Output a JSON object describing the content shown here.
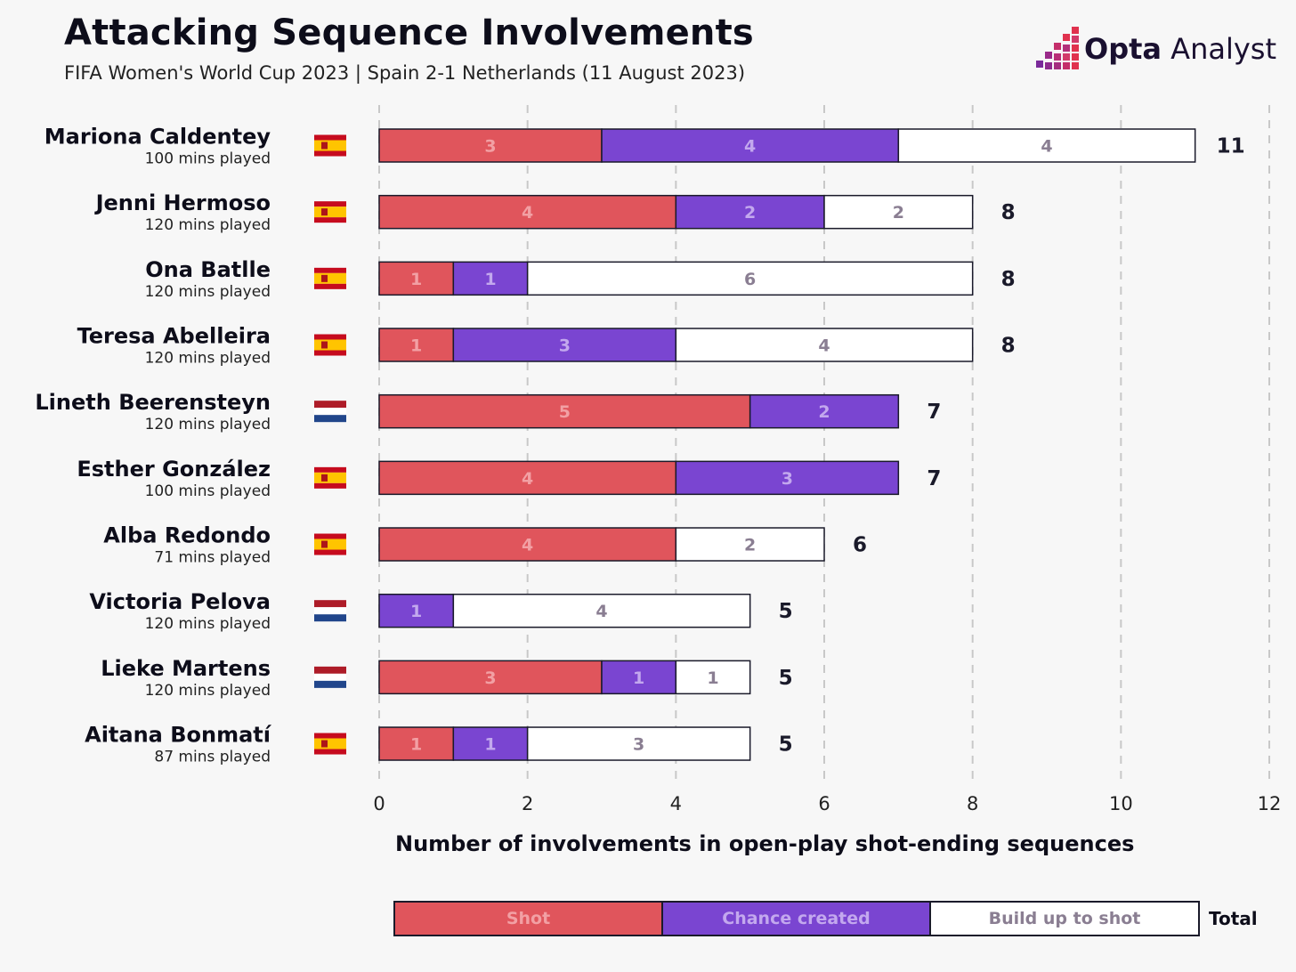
{
  "title": "Attacking Sequence Involvements",
  "subtitle": "FIFA Women's World Cup 2023 | Spain 2-1 Netherlands (11 August 2023)",
  "brand": {
    "bold": "Opta",
    "light": " Analyst"
  },
  "colors": {
    "shot": "#e0555c",
    "chance": "#7a45d1",
    "buildup": "#ffffff",
    "shot_text": "#f2a0a4",
    "chance_text": "#c3a8ee",
    "buildup_text": "#8a7e92"
  },
  "legend": {
    "shot": "Shot",
    "chance": "Chance created",
    "buildup": "Build up to shot",
    "total": "Total"
  },
  "chart_data": {
    "type": "bar",
    "orientation": "horizontal",
    "stacked": true,
    "xlabel": "Number of involvements in open-play shot-ending sequences",
    "xlim": [
      0,
      12
    ],
    "xticks": [
      0,
      2,
      4,
      6,
      8,
      10,
      12
    ],
    "grid": true,
    "series_names": [
      "Shot",
      "Chance created",
      "Build up to shot"
    ],
    "players": [
      {
        "name": "Mariona Caldentey",
        "mins": "100 mins played",
        "team": "Spain",
        "shot": 3,
        "chance": 4,
        "buildup": 4,
        "total": 11
      },
      {
        "name": "Jenni Hermoso",
        "mins": "120 mins played",
        "team": "Spain",
        "shot": 4,
        "chance": 2,
        "buildup": 2,
        "total": 8
      },
      {
        "name": "Ona Batlle",
        "mins": "120 mins played",
        "team": "Spain",
        "shot": 1,
        "chance": 1,
        "buildup": 6,
        "total": 8
      },
      {
        "name": "Teresa Abelleira",
        "mins": "120 mins played",
        "team": "Spain",
        "shot": 1,
        "chance": 3,
        "buildup": 4,
        "total": 8
      },
      {
        "name": "Lineth Beerensteyn",
        "mins": "120 mins played",
        "team": "Netherlands",
        "shot": 5,
        "chance": 2,
        "buildup": 0,
        "total": 7
      },
      {
        "name": "Esther González",
        "mins": "100 mins played",
        "team": "Spain",
        "shot": 4,
        "chance": 3,
        "buildup": 0,
        "total": 7
      },
      {
        "name": "Alba Redondo",
        "mins": "71 mins played",
        "team": "Spain",
        "shot": 4,
        "chance": 0,
        "buildup": 2,
        "total": 6
      },
      {
        "name": "Victoria Pelova",
        "mins": "120 mins played",
        "team": "Netherlands",
        "shot": 0,
        "chance": 1,
        "buildup": 4,
        "total": 5
      },
      {
        "name": "Lieke Martens",
        "mins": "120 mins played",
        "team": "Netherlands",
        "shot": 3,
        "chance": 1,
        "buildup": 1,
        "total": 5
      },
      {
        "name": "Aitana Bonmatí",
        "mins": "87 mins played",
        "team": "Spain",
        "shot": 1,
        "chance": 1,
        "buildup": 3,
        "total": 5
      }
    ]
  }
}
